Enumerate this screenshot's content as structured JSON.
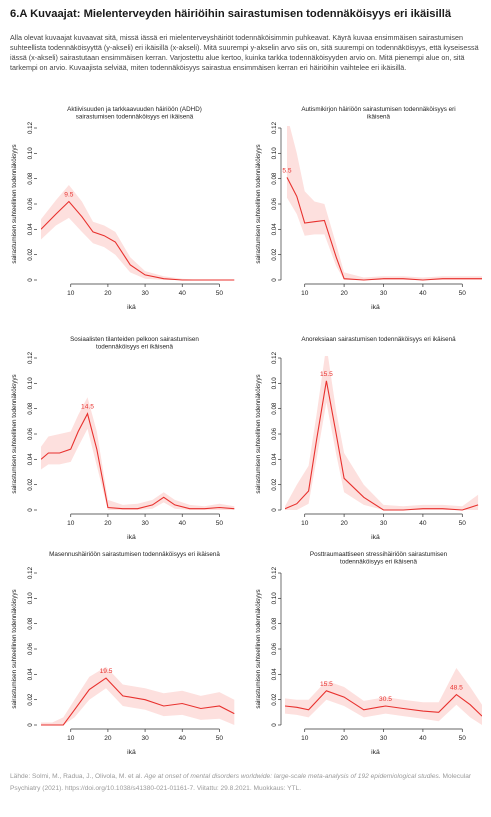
{
  "page": {
    "title": "6.A  Kuvaajat: Mielenterveyden häiriöihin sairastumisen todennäköisyys eri ikäisillä",
    "intro": "Alla olevat kuvaajat kuvaavat sitä, missä iässä eri mielenterveyshäiriöt todennäköisimmin puhkeavat. Käyrä kuvaa ensimmäisen sairastumisen suhteellista todennäköisyyttä (y-akseli) eri ikäisillä (x-akseli). Mitä suurempi y-akselin arvo siis on, sitä suurempi on todennäköisyys, että kyseisessä iässä (x-akseli) sairastutaan ensimmäisen kerran. Varjostettu alue kertoo, kuinka tarkka todennäköisyyden arvio on. Mitä pienempi alue on, sitä tarkempi on arvio. Kuvaajista selviää, miten todennäköisyys sairastua ensimmäisen kerran eri häiriöihin vaihtelee eri ikäisillä.",
    "footer_pre": "Lähde: Solmi, M., Radua, J., Olivola, M. et al. ",
    "footer_italic": "Age at onset of mental disorders worldwide: large-scale meta-analysis of 192 epidemiological studies.",
    "footer_post": " Molecular Psychiatry (2021). https://doi.org/10.1038/s41380-021-01161-7. Viitattu: 29.8.2021. Muokkaus: YTL."
  },
  "colors": {
    "line": "#e8312e",
    "band": "#fde0de",
    "axis": "#333333",
    "text": "#222222"
  },
  "chart_data": [
    {
      "type": "line",
      "title": "Aktiivisuuden ja tarkkaavuuden häiriöön (ADHD) sairastumisen todennäköisyys eri ikäisenä",
      "xlabel": "ikä",
      "ylabel": "sairastumisen suhteellinen todennäköisyys",
      "xlim": [
        2,
        55
      ],
      "ylim": [
        0,
        0.12
      ],
      "xticks": [
        10,
        20,
        30,
        40,
        50
      ],
      "yticks": [
        0,
        0.02,
        0.04,
        0.06,
        0.08,
        0.1,
        0.12
      ],
      "show_x_axis_line": true,
      "show_y_axis_line": false,
      "x": [
        2,
        6,
        9.5,
        13,
        16,
        19,
        22,
        26,
        30,
        35,
        40,
        45,
        50,
        54
      ],
      "y": [
        0.04,
        0.052,
        0.062,
        0.05,
        0.038,
        0.035,
        0.03,
        0.012,
        0.004,
        0.001,
        0,
        0,
        0,
        0
      ],
      "lower": [
        0.032,
        0.043,
        0.049,
        0.038,
        0.029,
        0.026,
        0.02,
        0.006,
        0.001,
        0,
        0,
        0,
        0,
        0
      ],
      "upper": [
        0.048,
        0.063,
        0.075,
        0.062,
        0.046,
        0.043,
        0.038,
        0.018,
        0.007,
        0.003,
        0.001,
        0,
        0,
        0
      ],
      "peak_labels": [
        {
          "x": 9.5,
          "y": 0.062,
          "text": "9.5"
        }
      ]
    },
    {
      "type": "line",
      "title": "Autismikirjon häiriöön sairastumisen todennäköisyys eri ikäisenä",
      "xlabel": "ikä",
      "ylabel": "sairastumisen suhteellinen todennäköisyys",
      "xlim": [
        5,
        55
      ],
      "ylim": [
        0,
        0.12
      ],
      "xticks": [
        10,
        20,
        30,
        40,
        50
      ],
      "yticks": [
        0,
        0.02,
        0.04,
        0.06,
        0.08,
        0.1,
        0.12
      ],
      "show_x_axis_line": true,
      "show_y_axis_line": true,
      "x": [
        5.5,
        8,
        10,
        12.5,
        15,
        18,
        20,
        25,
        30,
        35,
        40,
        45,
        50,
        55
      ],
      "y": [
        0.081,
        0.066,
        0.045,
        0.046,
        0.047,
        0.018,
        0.001,
        0,
        0.001,
        0.001,
        0,
        0.001,
        0.001,
        0.001
      ],
      "lower": [
        0.065,
        0.052,
        0.035,
        0.036,
        0.036,
        0.011,
        0,
        0,
        0,
        0,
        0,
        0,
        0,
        0
      ],
      "upper": [
        0.13,
        0.1,
        0.07,
        0.062,
        0.06,
        0.028,
        0.006,
        0.002,
        0.003,
        0.003,
        0.002,
        0.003,
        0.003,
        0.003
      ],
      "peak_labels": [
        {
          "x": 5.5,
          "y": 0.081,
          "text": "5.5"
        }
      ]
    },
    {
      "type": "line",
      "title": "Sosiaalisten tilanteiden pelkoon sairastumisen todennäköisyys eri ikäisenä",
      "xlabel": "ikä",
      "ylabel": "sairastumisen suhteellinen todennäköisyys",
      "xlim": [
        2,
        55
      ],
      "ylim": [
        0,
        0.12
      ],
      "xticks": [
        10,
        20,
        30,
        40,
        50
      ],
      "yticks": [
        0,
        0.02,
        0.04,
        0.06,
        0.08,
        0.1,
        0.12
      ],
      "show_x_axis_line": true,
      "show_y_axis_line": false,
      "x": [
        2,
        4,
        7,
        10,
        12,
        14.5,
        17,
        20,
        24,
        28,
        32,
        35,
        38,
        42,
        46,
        50,
        54
      ],
      "y": [
        0.04,
        0.045,
        0.045,
        0.048,
        0.062,
        0.076,
        0.048,
        0.002,
        0.001,
        0.001,
        0.004,
        0.01,
        0.004,
        0.001,
        0.001,
        0.002,
        0.001
      ],
      "lower": [
        0.032,
        0.036,
        0.036,
        0.038,
        0.05,
        0.064,
        0.035,
        0,
        0,
        0,
        0.001,
        0.006,
        0.001,
        0,
        0,
        0,
        0
      ],
      "upper": [
        0.05,
        0.058,
        0.06,
        0.062,
        0.075,
        0.089,
        0.062,
        0.008,
        0.004,
        0.005,
        0.008,
        0.014,
        0.008,
        0.004,
        0.003,
        0.005,
        0.003
      ],
      "peak_labels": [
        {
          "x": 14.5,
          "y": 0.076,
          "text": "14.5"
        }
      ]
    },
    {
      "type": "line",
      "title": "Anoreksiaan sairastumisen todennäköisyys eri ikäisenä",
      "xlabel": "ikä",
      "ylabel": "sairastumisen suhteellinen todennäköisyys",
      "xlim": [
        5,
        55
      ],
      "ylim": [
        0,
        0.12
      ],
      "xticks": [
        10,
        20,
        30,
        40,
        50
      ],
      "yticks": [
        0,
        0.02,
        0.04,
        0.06,
        0.08,
        0.1,
        0.12
      ],
      "show_x_axis_line": true,
      "show_y_axis_line": true,
      "x": [
        5,
        8,
        11,
        13,
        15.5,
        18,
        20,
        25,
        30,
        35,
        40,
        45,
        50,
        54
      ],
      "y": [
        0.001,
        0.005,
        0.015,
        0.055,
        0.102,
        0.06,
        0.025,
        0.01,
        0,
        0,
        0.001,
        0.001,
        0,
        0.004
      ],
      "lower": [
        0,
        0,
        0.005,
        0.04,
        0.085,
        0.044,
        0.014,
        0.004,
        0,
        0,
        0,
        0,
        0,
        0
      ],
      "upper": [
        0.003,
        0.02,
        0.035,
        0.075,
        0.13,
        0.078,
        0.045,
        0.02,
        0.004,
        0.003,
        0.004,
        0.004,
        0.003,
        0.012
      ],
      "peak_labels": [
        {
          "x": 15.5,
          "y": 0.102,
          "text": "15.5"
        }
      ]
    },
    {
      "type": "line",
      "title": "Masennushäiriöön sairastumisen todennäköisyys eri ikäisenä",
      "xlabel": "ikä",
      "ylabel": "sairastumisen suhteellinen todennäköisyys",
      "xlim": [
        2,
        55
      ],
      "ylim": [
        0,
        0.12
      ],
      "xticks": [
        10,
        20,
        30,
        40,
        50
      ],
      "yticks": [
        0,
        0.02,
        0.04,
        0.06,
        0.08,
        0.1,
        0.12
      ],
      "show_x_axis_line": true,
      "show_y_axis_line": false,
      "x": [
        2,
        5,
        8,
        11,
        15,
        19.5,
        24,
        30,
        35,
        40,
        45,
        50,
        54
      ],
      "y": [
        0,
        0,
        0,
        0.012,
        0.028,
        0.037,
        0.023,
        0.02,
        0.015,
        0.017,
        0.013,
        0.015,
        0.009
      ],
      "lower": [
        0,
        0,
        0,
        0.006,
        0.02,
        0.029,
        0.015,
        0.012,
        0.007,
        0.008,
        0.004,
        0.005,
        0
      ],
      "upper": [
        0.002,
        0.002,
        0.006,
        0.02,
        0.038,
        0.046,
        0.032,
        0.029,
        0.025,
        0.027,
        0.023,
        0.026,
        0.02
      ],
      "peak_labels": [
        {
          "x": 19.5,
          "y": 0.037,
          "text": "19.5"
        }
      ]
    },
    {
      "type": "line",
      "title": "Posttraumaattiseen stressihäiriöön sairastumisen todennäköisyys eri ikäisenä",
      "xlabel": "ikä",
      "ylabel": "sairastumisen suhteellinen todennäköisyys",
      "xlim": [
        5,
        55
      ],
      "ylim": [
        0,
        0.12
      ],
      "xticks": [
        10,
        20,
        30,
        40,
        50
      ],
      "yticks": [
        0,
        0.02,
        0.04,
        0.06,
        0.08,
        0.1,
        0.12
      ],
      "show_x_axis_line": true,
      "show_y_axis_line": true,
      "x": [
        5,
        8,
        11,
        15.5,
        20,
        25,
        30.5,
        35,
        40,
        44,
        48.5,
        52,
        55
      ],
      "y": [
        0.015,
        0.014,
        0.012,
        0.027,
        0.022,
        0.012,
        0.015,
        0.013,
        0.011,
        0.01,
        0.024,
        0.016,
        0.007
      ],
      "lower": [
        0.009,
        0.008,
        0.006,
        0.02,
        0.015,
        0.006,
        0.009,
        0.007,
        0.005,
        0.003,
        0.016,
        0.006,
        0
      ],
      "upper": [
        0.021,
        0.02,
        0.02,
        0.035,
        0.03,
        0.019,
        0.022,
        0.02,
        0.018,
        0.018,
        0.045,
        0.03,
        0.016
      ],
      "peak_labels": [
        {
          "x": 15.5,
          "y": 0.027,
          "text": "15.5"
        },
        {
          "x": 30.5,
          "y": 0.015,
          "text": "30.5"
        },
        {
          "x": 48.5,
          "y": 0.024,
          "text": "48.5"
        }
      ]
    }
  ]
}
